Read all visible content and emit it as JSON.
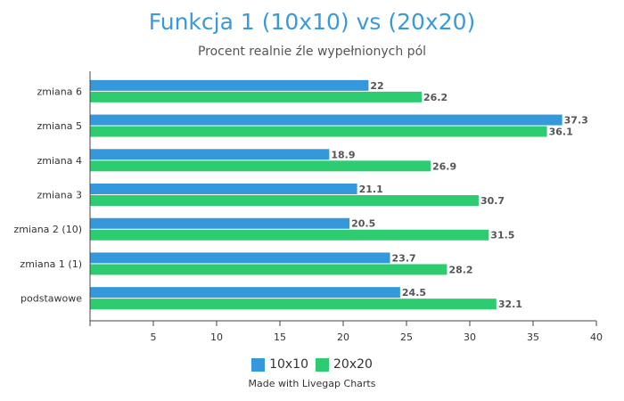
{
  "chart_data": {
    "type": "bar",
    "orientation": "horizontal",
    "title": "Funkcja 1 (10x10) vs (20x20)",
    "subtitle": "Procent realnie źle wypełnionych pól",
    "categories": [
      "zmiana 6",
      "zmiana 5",
      "zmiana 4",
      "zmiana 3",
      "zmiana 2 (10)",
      "zmiana 1 (1)",
      "podstawowe"
    ],
    "series": [
      {
        "name": "10x10",
        "color": "#3498db",
        "values": [
          22,
          37.3,
          18.9,
          21.1,
          20.5,
          23.7,
          24.5
        ]
      },
      {
        "name": "20x20",
        "color": "#2ecc71",
        "values": [
          26.2,
          36.1,
          26.9,
          30.7,
          31.5,
          28.2,
          32.1
        ]
      }
    ],
    "xlim": [
      0,
      40
    ],
    "xticks": [
      5,
      10,
      15,
      20,
      25,
      30,
      35,
      40
    ],
    "grid": false,
    "legend_position": "bottom"
  },
  "footer": {
    "credit": "Made with Livegap Charts"
  }
}
